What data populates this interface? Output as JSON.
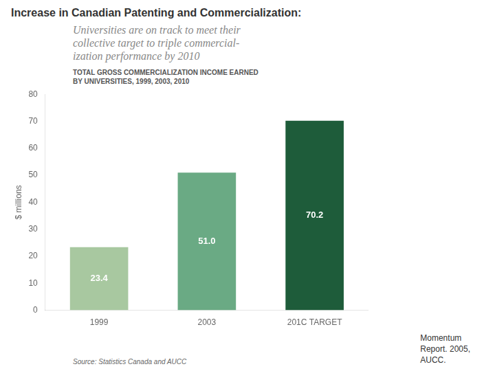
{
  "chart_data": {
    "type": "bar",
    "title": "Increase in Canadian Patenting and Commercialization:",
    "subtitle": "Universities are on track to meet their\ncollective target to triple commercial-\nization performance by 2010",
    "chart_title": [
      "TOTAL GROSS COMMERCIALIZATION INCOME EARNED",
      "BY UNIVERSITIES, 1999, 2003, 2010"
    ],
    "source": "Source: Statistics Canada and AUCC",
    "footer": "Momentum\nReport. 2005,\nAUCC.",
    "categories": [
      "1999",
      "2003",
      "201C TARGET"
    ],
    "values": [
      23.4,
      51.0,
      70.2
    ],
    "value_labels": [
      "23.4",
      "51.0",
      "70.2"
    ],
    "data_labels": true,
    "colors": [
      "#a8c8a0",
      "#6aaa84",
      "#1e5c3a"
    ],
    "ylabel": "$ millions",
    "ylim": [
      0,
      80
    ],
    "yticks": [
      0,
      10,
      20,
      30,
      40,
      50,
      60,
      70,
      80
    ],
    "grid": false,
    "legend": false
  }
}
